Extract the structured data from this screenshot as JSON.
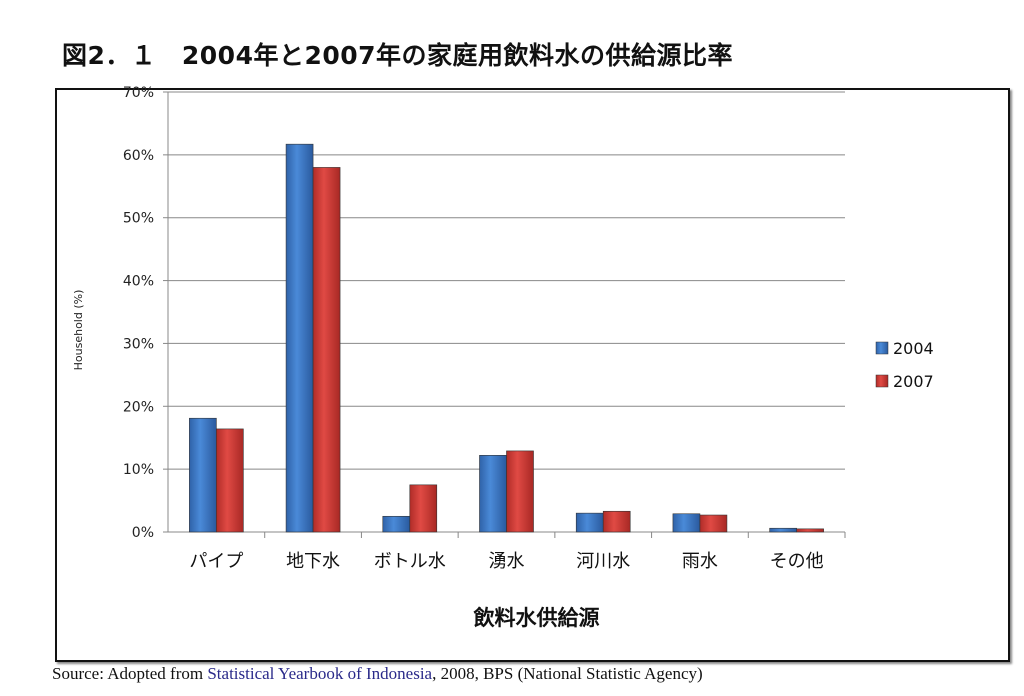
{
  "title": "図2．１　2004年と2007年の家庭用飲料水の供給源比率",
  "source": {
    "prefix": "Source: Adopted from ",
    "link": "Statistical Yearbook of Indonesia",
    "suffix": ", 2008, BPS (National Statistic Agency)"
  },
  "chart_data": {
    "type": "bar",
    "title": "図2．１　2004年と2007年の家庭用飲料水の供給源比率",
    "xlabel": "飲料水供給源",
    "ylabel": "Household (%)",
    "ylim": [
      0,
      70
    ],
    "yticks": [
      0,
      10,
      20,
      30,
      40,
      50,
      60,
      70
    ],
    "ytick_labels": [
      "0%",
      "10%",
      "20%",
      "30%",
      "40%",
      "50%",
      "60%",
      "70%"
    ],
    "grid": true,
    "legend_position": "right",
    "categories": [
      "パイプ",
      "地下水",
      "ボトル水",
      "湧水",
      "河川水",
      "雨水",
      "その他"
    ],
    "series": [
      {
        "name": "2004",
        "color": "#3a78c8",
        "values": [
          18.1,
          61.7,
          2.5,
          12.2,
          3.0,
          2.9,
          0.6
        ]
      },
      {
        "name": "2007",
        "color": "#d03a36",
        "values": [
          16.4,
          58.0,
          7.5,
          12.9,
          3.3,
          2.7,
          0.5
        ]
      }
    ]
  }
}
